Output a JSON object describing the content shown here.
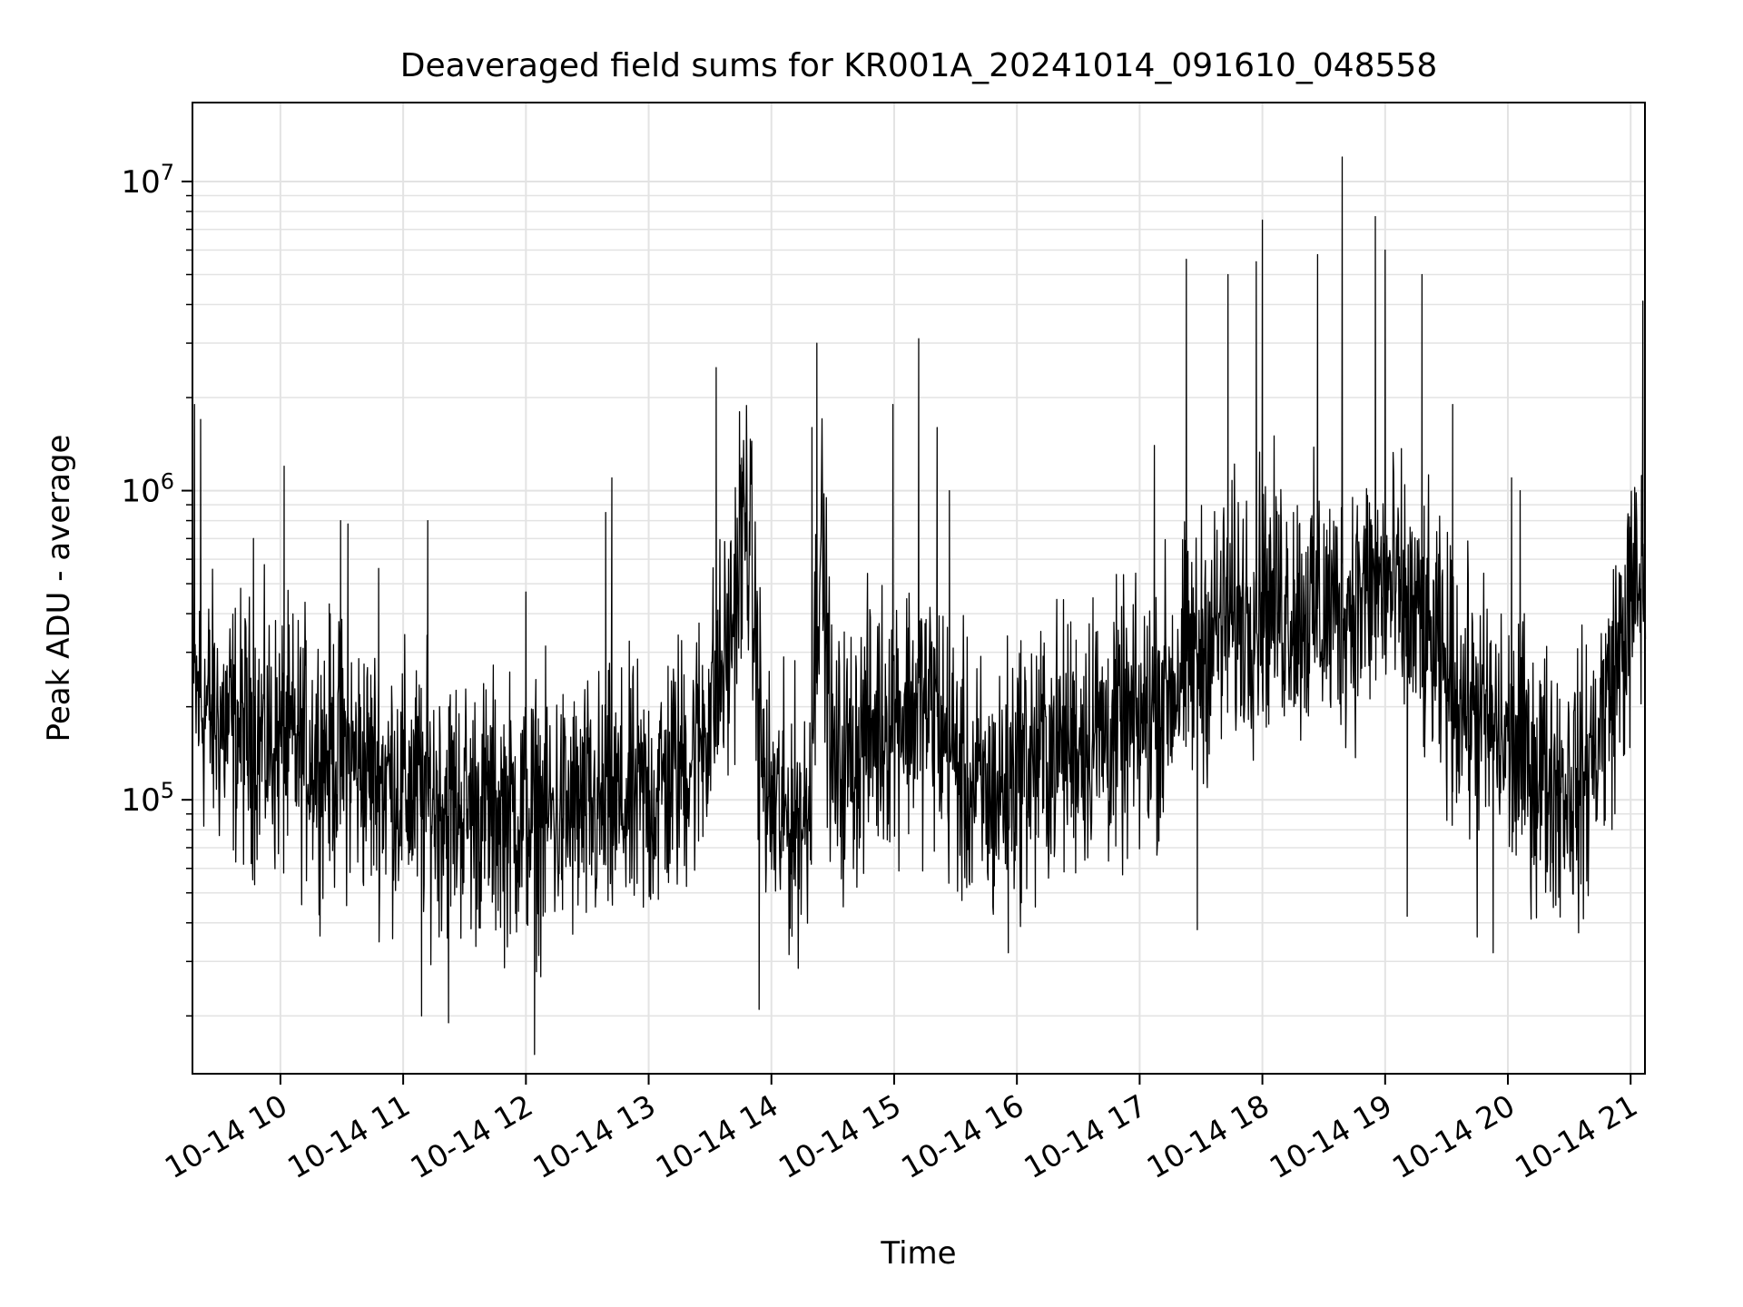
{
  "chart_data": {
    "type": "line",
    "title": "Deaveraged field sums for KR001A_20241014_091610_048558",
    "xlabel": "Time",
    "ylabel": "Peak ADU - average",
    "yscale": "log",
    "grid": "on (major and minor, light gray)",
    "legend": "none",
    "line_color": "#000000",
    "xlim": [
      "2024-10-14 09:17",
      "2024-10-14 21:07"
    ],
    "ylim": [
      13000,
      18000000
    ],
    "x_tick_labels": [
      "10-14 10",
      "10-14 11",
      "10-14 12",
      "10-14 13",
      "10-14 14",
      "10-14 15",
      "10-14 16",
      "10-14 17",
      "10-14 18",
      "10-14 19",
      "10-14 20",
      "10-14 21"
    ],
    "x_tick_hours": [
      10,
      11,
      12,
      13,
      14,
      15,
      16,
      17,
      18,
      19,
      20,
      21
    ],
    "y_tick_labels": [
      {
        "base": "10",
        "exp": "5",
        "value": 100000
      },
      {
        "base": "10",
        "exp": "6",
        "value": 1000000
      },
      {
        "base": "10",
        "exp": "7",
        "value": 10000000
      }
    ],
    "series": [
      {
        "color": "#000000",
        "baseline_hours": [
          9.28,
          9.5,
          10.0,
          10.5,
          11.0,
          11.5,
          12.0,
          12.5,
          13.0,
          13.4,
          13.65,
          13.8,
          13.95,
          14.1,
          14.3,
          14.4,
          14.5,
          14.7,
          15.0,
          15.3,
          15.6,
          15.8,
          16.0,
          16.5,
          17.0,
          17.3,
          17.6,
          18.0,
          18.5,
          19.0,
          19.3,
          19.5,
          19.8,
          20.0,
          20.3,
          20.6,
          20.8,
          21.0,
          21.12
        ],
        "baseline_values": [
          220000,
          180000,
          150000,
          140000,
          110000,
          95000,
          90000,
          90000,
          100000,
          150000,
          300000,
          900000,
          100000,
          85000,
          90000,
          800000,
          120000,
          150000,
          200000,
          200000,
          110000,
          100000,
          130000,
          160000,
          170000,
          250000,
          350000,
          450000,
          400000,
          500000,
          350000,
          250000,
          180000,
          150000,
          120000,
          110000,
          200000,
          420000,
          550000
        ],
        "spike_points": [
          {
            "x": 9.3,
            "y": 1900000
          },
          {
            "x": 9.35,
            "y": 1700000
          },
          {
            "x": 9.78,
            "y": 700000
          },
          {
            "x": 10.03,
            "y": 1200000
          },
          {
            "x": 10.49,
            "y": 800000
          },
          {
            "x": 10.55,
            "y": 780000
          },
          {
            "x": 10.8,
            "y": 560000
          },
          {
            "x": 11.2,
            "y": 800000
          },
          {
            "x": 11.15,
            "y": 20000
          },
          {
            "x": 11.37,
            "y": 19000
          },
          {
            "x": 12.07,
            "y": 15000
          },
          {
            "x": 12.0,
            "y": 470000
          },
          {
            "x": 12.7,
            "y": 1100000
          },
          {
            "x": 12.65,
            "y": 850000
          },
          {
            "x": 13.55,
            "y": 2500000
          },
          {
            "x": 13.74,
            "y": 1800000
          },
          {
            "x": 13.9,
            "y": 21000
          },
          {
            "x": 14.33,
            "y": 1600000
          },
          {
            "x": 14.37,
            "y": 3000000
          },
          {
            "x": 14.99,
            "y": 1900000
          },
          {
            "x": 15.2,
            "y": 3100000
          },
          {
            "x": 15.35,
            "y": 1600000
          },
          {
            "x": 15.45,
            "y": 1000000
          },
          {
            "x": 15.93,
            "y": 32000
          },
          {
            "x": 16.15,
            "y": 45000
          },
          {
            "x": 16.62,
            "y": 450000
          },
          {
            "x": 17.12,
            "y": 1400000
          },
          {
            "x": 17.38,
            "y": 5600000
          },
          {
            "x": 17.47,
            "y": 38000
          },
          {
            "x": 17.72,
            "y": 5000000
          },
          {
            "x": 17.95,
            "y": 5500000
          },
          {
            "x": 18.0,
            "y": 7500000
          },
          {
            "x": 18.45,
            "y": 5800000
          },
          {
            "x": 18.65,
            "y": 12000000
          },
          {
            "x": 18.92,
            "y": 7700000
          },
          {
            "x": 19.0,
            "y": 6000000
          },
          {
            "x": 19.3,
            "y": 5000000
          },
          {
            "x": 19.55,
            "y": 1900000
          },
          {
            "x": 19.18,
            "y": 42000
          },
          {
            "x": 19.75,
            "y": 36000
          },
          {
            "x": 19.88,
            "y": 32000
          },
          {
            "x": 20.03,
            "y": 1100000
          },
          {
            "x": 20.1,
            "y": 1000000
          },
          {
            "x": 21.1,
            "y": 4100000
          }
        ]
      }
    ]
  }
}
